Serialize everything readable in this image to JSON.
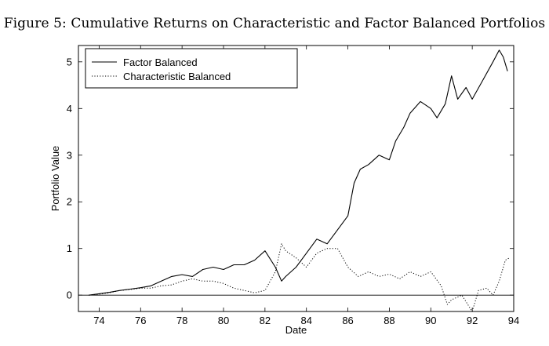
{
  "figure": {
    "title": "Figure 5: Cumulative Returns on Characteristic and Factor Balanced Portfolios"
  },
  "chart_data": {
    "type": "line",
    "title": "Figure 5: Cumulative Returns on Characteristic and Factor Balanced Portfolios",
    "xlabel": "Date",
    "ylabel": "Portfolio Value",
    "xlim": [
      73,
      94
    ],
    "ylim": [
      -0.35,
      5.35
    ],
    "xticks": [
      74,
      76,
      78,
      80,
      82,
      84,
      86,
      88,
      90,
      92,
      94
    ],
    "yticks": [
      0,
      1,
      2,
      3,
      4,
      5
    ],
    "grid": false,
    "zero_line": true,
    "legend": "top-left",
    "series": [
      {
        "name": "Factor Balanced",
        "style": "solid",
        "color": "#000000",
        "points": [
          [
            73.5,
            0.0
          ],
          [
            74.0,
            0.03
          ],
          [
            74.5,
            0.06
          ],
          [
            75.0,
            0.1
          ],
          [
            75.5,
            0.13
          ],
          [
            76.0,
            0.16
          ],
          [
            76.5,
            0.2
          ],
          [
            77.0,
            0.3
          ],
          [
            77.5,
            0.4
          ],
          [
            78.0,
            0.44
          ],
          [
            78.5,
            0.4
          ],
          [
            79.0,
            0.55
          ],
          [
            79.5,
            0.6
          ],
          [
            80.0,
            0.55
          ],
          [
            80.5,
            0.65
          ],
          [
            81.0,
            0.65
          ],
          [
            81.5,
            0.75
          ],
          [
            82.0,
            0.95
          ],
          [
            82.5,
            0.6
          ],
          [
            82.8,
            0.3
          ],
          [
            83.0,
            0.4
          ],
          [
            83.5,
            0.6
          ],
          [
            84.0,
            0.9
          ],
          [
            84.5,
            1.2
          ],
          [
            85.0,
            1.1
          ],
          [
            85.5,
            1.4
          ],
          [
            86.0,
            1.7
          ],
          [
            86.3,
            2.4
          ],
          [
            86.6,
            2.7
          ],
          [
            87.0,
            2.8
          ],
          [
            87.5,
            3.0
          ],
          [
            88.0,
            2.9
          ],
          [
            88.3,
            3.3
          ],
          [
            88.7,
            3.6
          ],
          [
            89.0,
            3.9
          ],
          [
            89.5,
            4.15
          ],
          [
            90.0,
            4.0
          ],
          [
            90.3,
            3.8
          ],
          [
            90.7,
            4.1
          ],
          [
            91.0,
            4.7
          ],
          [
            91.3,
            4.2
          ],
          [
            91.7,
            4.45
          ],
          [
            92.0,
            4.2
          ],
          [
            92.5,
            4.6
          ],
          [
            93.0,
            5.0
          ],
          [
            93.3,
            5.25
          ],
          [
            93.5,
            5.1
          ],
          [
            93.7,
            4.8
          ]
        ]
      },
      {
        "name": "Characteristic Balanced",
        "style": "dotted",
        "color": "#000000",
        "points": [
          [
            73.5,
            0.0
          ],
          [
            74.0,
            0.02
          ],
          [
            74.5,
            0.05
          ],
          [
            75.0,
            0.1
          ],
          [
            75.5,
            0.12
          ],
          [
            76.0,
            0.15
          ],
          [
            76.5,
            0.15
          ],
          [
            77.0,
            0.2
          ],
          [
            77.5,
            0.22
          ],
          [
            78.0,
            0.3
          ],
          [
            78.5,
            0.35
          ],
          [
            79.0,
            0.3
          ],
          [
            79.5,
            0.3
          ],
          [
            80.0,
            0.25
          ],
          [
            80.5,
            0.15
          ],
          [
            81.0,
            0.1
          ],
          [
            81.5,
            0.05
          ],
          [
            82.0,
            0.1
          ],
          [
            82.5,
            0.5
          ],
          [
            82.8,
            1.1
          ],
          [
            83.0,
            0.95
          ],
          [
            83.5,
            0.8
          ],
          [
            84.0,
            0.6
          ],
          [
            84.5,
            0.9
          ],
          [
            85.0,
            1.0
          ],
          [
            85.5,
            1.0
          ],
          [
            86.0,
            0.6
          ],
          [
            86.5,
            0.4
          ],
          [
            87.0,
            0.5
          ],
          [
            87.5,
            0.4
          ],
          [
            88.0,
            0.45
          ],
          [
            88.5,
            0.35
          ],
          [
            89.0,
            0.5
          ],
          [
            89.5,
            0.4
          ],
          [
            90.0,
            0.5
          ],
          [
            90.5,
            0.2
          ],
          [
            90.8,
            -0.2
          ],
          [
            91.0,
            -0.1
          ],
          [
            91.5,
            0.0
          ],
          [
            92.0,
            -0.35
          ],
          [
            92.3,
            0.1
          ],
          [
            92.7,
            0.15
          ],
          [
            93.0,
            0.0
          ],
          [
            93.3,
            0.3
          ],
          [
            93.6,
            0.75
          ],
          [
            93.8,
            0.8
          ]
        ]
      }
    ]
  }
}
